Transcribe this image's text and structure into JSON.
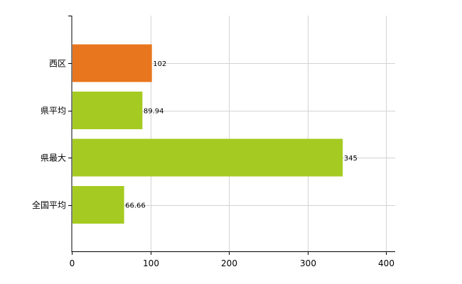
{
  "chart_data": {
    "type": "bar",
    "orientation": "horizontal",
    "categories": [
      "西区",
      "県平均",
      "県最大",
      "全国平均"
    ],
    "values": [
      102,
      89.94,
      345,
      66.66
    ],
    "value_labels": [
      "102",
      "89.94",
      "345",
      "66.66"
    ],
    "bar_colors": [
      "#E8761E",
      "#A5CB22",
      "#A5CB22",
      "#A5CB22"
    ],
    "xlim": [
      0,
      400
    ],
    "x_ticks": [
      0,
      100,
      200,
      300,
      400
    ],
    "x_tick_labels": [
      "0",
      "100",
      "200",
      "300",
      "400"
    ],
    "grid": true,
    "grid_color": "#D3D3D3",
    "axis_color": "#000000"
  }
}
